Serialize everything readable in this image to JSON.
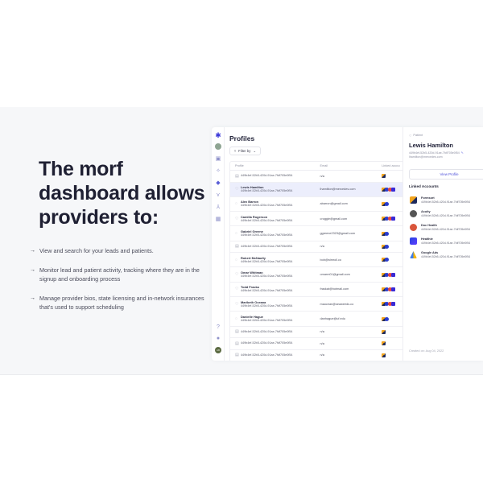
{
  "hero": {
    "title": "The morf dashboard allows providers to:",
    "bullets": [
      "View and search for your leads and patients.",
      "Monitor lead and patient activity, tracking where they are in the signup and onboarding process",
      "Manage provider bios, state licensing and in-network insurances that's used to support scheduling"
    ],
    "bullet_icon": "→"
  },
  "sidebar": {
    "icons": [
      "logo-icon",
      "avatar-icon",
      "chart-icon",
      "activity-icon",
      "users-icon",
      "merge-icon",
      "workflow-icon",
      "apps-icon",
      "help-icon",
      "account-icon",
      "user-avatar"
    ]
  },
  "profiles": {
    "title": "Profiles",
    "filter_label": "Filter by",
    "columns": [
      "Profile",
      "Email",
      "Linked accou"
    ],
    "rows": [
      {
        "name": "",
        "id": "449b4ef-52b5-420d-91ae-7fdf705e0f54",
        "email": "n/a",
        "icon": "lock",
        "linked": [
          "f"
        ],
        "selected": false
      },
      {
        "name": "Lewis Hamilton",
        "id": "449b4ef-52b5-420d-91ae-7fdf705e0f54",
        "email": "lhamilton@mercedes.com",
        "icon": "heart",
        "linked": [
          "f",
          "a",
          "d",
          "h"
        ],
        "selected": true
      },
      {
        "name": "Alex Barron",
        "id": "449b4ef-52b5-420d-91ae-7fdf705e0f54",
        "email": "abarron@gmail.com",
        "icon": "chat",
        "linked": [
          "f",
          "a"
        ],
        "selected": false
      },
      {
        "name": "Camilla Rogerson",
        "id": "449b4ef-52b5-420d-91ae-7fdf705e0f54",
        "email": "croggie@gmail.com",
        "icon": "heart",
        "linked": [
          "f",
          "a",
          "d",
          "h"
        ],
        "selected": false
      },
      {
        "name": "Gabriel Greene",
        "id": "449b4ef-52b5-420d-91ae-7fdf705e0f54",
        "email": "ggreene2323@gmail.com",
        "icon": "chat",
        "linked": [
          "f",
          "a"
        ],
        "selected": false
      },
      {
        "name": "",
        "id": "449b4ef-52b5-420d-91ae-7fdf705e0f54",
        "email": "n/a",
        "icon": "lock",
        "linked": [
          "f",
          "a"
        ],
        "selected": false
      },
      {
        "name": "Robert McNaulty",
        "id": "449b4ef-52b5-420d-91ae-7fdf705e0f54",
        "email": "bob@stmroll.co",
        "icon": "chat",
        "linked": [
          "f",
          "a"
        ],
        "selected": false
      },
      {
        "name": "Omar Whitman",
        "id": "449b4ef-52b5-420d-91ae-7fdf705e0f54",
        "email": "omarm01@gmail.com",
        "icon": "heart",
        "linked": [
          "f",
          "a",
          "d",
          "h"
        ],
        "selected": false
      },
      {
        "name": "Todd Fracka",
        "id": "449b4ef-52b5-420d-91ae-7fdf705e0f54",
        "email": "fraskat@hotmail.com",
        "icon": "heart",
        "linked": [
          "f",
          "a",
          "d",
          "h"
        ],
        "selected": false
      },
      {
        "name": "Maribeth Oceana",
        "id": "449b4ef-52b5-420d-91ae-7fdf705e0f54",
        "email": "maocean@seaweeds.co",
        "icon": "heart",
        "linked": [
          "f",
          "a",
          "d",
          "h"
        ],
        "selected": false
      },
      {
        "name": "Danielle Hague",
        "id": "449b4ef-52b5-420d-91ae-7fdf705e0f54",
        "email": "danhague@uf.edu",
        "icon": "chat",
        "linked": [
          "f",
          "a"
        ],
        "selected": false
      },
      {
        "name": "",
        "id": "449b4ef-52b5-420d-91ae-7fdf705e0f54",
        "email": "n/a",
        "icon": "lock",
        "linked": [
          "f"
        ],
        "selected": false
      },
      {
        "name": "",
        "id": "449b4ef-52b5-420d-91ae-7fdf705e0f54",
        "email": "n/a",
        "icon": "lock",
        "linked": [
          "f"
        ],
        "selected": false
      },
      {
        "name": "",
        "id": "449b4ef-52b5-420d-91ae-7fdf705e0f54",
        "email": "n/a",
        "icon": "lock",
        "linked": [
          "f"
        ],
        "selected": false
      }
    ]
  },
  "detail": {
    "tag": "Patient",
    "name": "Lewis Hamilton",
    "id": "449b4ef-52b5-420d-91ae-7fdf705e0f54",
    "email": "lhamilton@mercedes.com",
    "view_profile_label": "View Profile",
    "linked_accounts_title": "Linked Accounts",
    "linked_accounts": [
      {
        "key": "formsort",
        "name": "Formsort",
        "id": "449b4ef-52b5-420d-91ae-7fdf705e0f54"
      },
      {
        "key": "acuity",
        "name": "Acuity",
        "id": "449b4ef-52b5-420d-91ae-7fdf705e0f54"
      },
      {
        "key": "dochealth",
        "name": "Doc Health",
        "id": "449b4ef-52b5-420d-91ae-7fdf705e0f54"
      },
      {
        "key": "healthie",
        "name": "Healthie",
        "id": "449b4ef-52b5-420d-91ae-7fdf705e0f54"
      },
      {
        "key": "googleads",
        "name": "Google Ads",
        "id": "449b4ef-52b5-420d-91ae-7fdf705e0f54"
      }
    ],
    "created_on": "Created on: Aug 04, 2022"
  },
  "colors": {
    "accent": "#4d4fd9",
    "band": "#f6f7f9",
    "selected_row": "#eceefc",
    "heading": "#1f2033"
  }
}
